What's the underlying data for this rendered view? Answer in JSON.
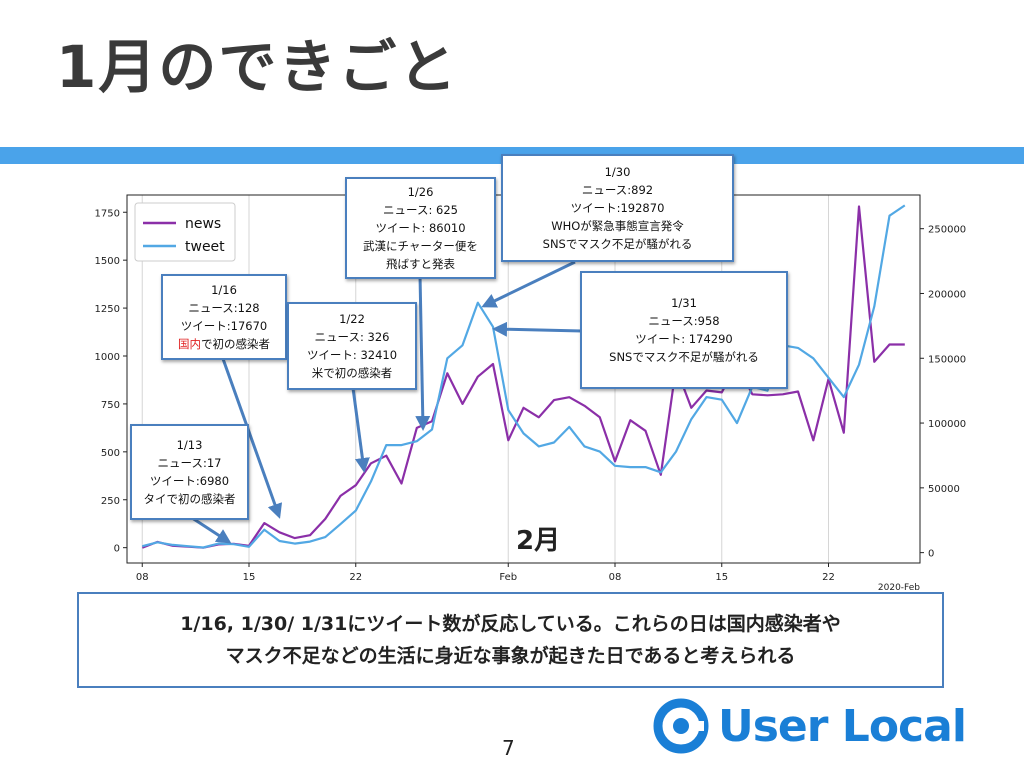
{
  "slide": {
    "title": "1月のできごと",
    "month_label": "2月",
    "summary_line1": "1/16, 1/30/ 1/31にツイート数が反応している。これらの日は国内感染者や",
    "summary_line2": "マスク不足などの生活に身近な事象が起きた日であると考えられる",
    "page_number": "7",
    "brand": "User Local",
    "colors": {
      "accent_bar": "#4aa3ea",
      "news": "#8b2fa8",
      "tweet": "#52a8e4",
      "callout_border": "#4a7fbe",
      "brand": "#1a7fd6"
    }
  },
  "callouts": [
    {
      "id": "jan13",
      "lines": [
        "1/13",
        "ニュース:17",
        "ツイート:6980",
        "タイで初の感染者"
      ]
    },
    {
      "id": "jan16",
      "lines": [
        "1/16",
        "ニュース:128",
        "ツイート:17670"
      ],
      "last_prefix": "国内",
      "last_suffix": "で初の感染者"
    },
    {
      "id": "jan22",
      "lines": [
        "1/22",
        "ニュース: 326",
        "ツイート: 32410",
        "米で初の感染者"
      ]
    },
    {
      "id": "jan26",
      "lines": [
        "1/26",
        "ニュース: 625",
        "ツイート: 86010",
        "武漢にチャーター便を",
        "飛ばすと発表"
      ]
    },
    {
      "id": "jan30",
      "lines": [
        "1/30",
        "ニュース:892",
        "ツイート:192870",
        "WHOが緊急事態宣言発令",
        "SNSでマスク不足が騒がれる"
      ]
    },
    {
      "id": "jan31",
      "lines": [
        "1/31",
        "ニュース:958",
        "ツイート: 174290",
        "SNSでマスク不足が騒がれる"
      ]
    }
  ],
  "chart_data": {
    "type": "line",
    "x_tick_labels": [
      "08",
      "15",
      "22",
      "Feb",
      "08",
      "15",
      "22"
    ],
    "x_offset_label": "2020-Feb",
    "x_range": [
      "2020-01-07",
      "2020-02-28"
    ],
    "y_left_ticks": [
      "0",
      "250",
      "500",
      "750",
      "1000",
      "1250",
      "1500",
      "1750"
    ],
    "y_left_range": [
      -80,
      1840
    ],
    "y_right_ticks": [
      "0",
      "50000",
      "100000",
      "150000",
      "200000",
      "250000"
    ],
    "y_right_range": [
      -8000,
      276000
    ],
    "grid": "vertical",
    "legend_position": "upper-left",
    "series": [
      {
        "name": "news",
        "axis": "left",
        "x": [
          "2020-01-08",
          "2020-01-09",
          "2020-01-10",
          "2020-01-11",
          "2020-01-12",
          "2020-01-13",
          "2020-01-14",
          "2020-01-15",
          "2020-01-16",
          "2020-01-17",
          "2020-01-18",
          "2020-01-19",
          "2020-01-20",
          "2020-01-21",
          "2020-01-22",
          "2020-01-23",
          "2020-01-24",
          "2020-01-25",
          "2020-01-26",
          "2020-01-27",
          "2020-01-28",
          "2020-01-29",
          "2020-01-30",
          "2020-01-31",
          "2020-02-01",
          "2020-02-02",
          "2020-02-03",
          "2020-02-04",
          "2020-02-05",
          "2020-02-06",
          "2020-02-07",
          "2020-02-08",
          "2020-02-09",
          "2020-02-10",
          "2020-02-11",
          "2020-02-12",
          "2020-02-13",
          "2020-02-14",
          "2020-02-15",
          "2020-02-16",
          "2020-02-17",
          "2020-02-18",
          "2020-02-19",
          "2020-02-20",
          "2020-02-21",
          "2020-02-22",
          "2020-02-23",
          "2020-02-24",
          "2020-02-25",
          "2020-02-26",
          "2020-02-27"
        ],
        "values": [
          0,
          30,
          10,
          5,
          0,
          17,
          20,
          10,
          128,
          80,
          50,
          65,
          150,
          270,
          326,
          440,
          480,
          335,
          625,
          660,
          910,
          750,
          892,
          958,
          560,
          730,
          680,
          770,
          785,
          740,
          680,
          450,
          665,
          610,
          380,
          940,
          730,
          820,
          810,
          960,
          800,
          795,
          800,
          815,
          560,
          880,
          600,
          1780,
          970,
          1060,
          1060
        ]
      },
      {
        "name": "tweet",
        "axis": "right",
        "x": [
          "2020-01-08",
          "2020-01-09",
          "2020-01-10",
          "2020-01-11",
          "2020-01-12",
          "2020-01-13",
          "2020-01-14",
          "2020-01-15",
          "2020-01-16",
          "2020-01-17",
          "2020-01-18",
          "2020-01-19",
          "2020-01-20",
          "2020-01-21",
          "2020-01-22",
          "2020-01-23",
          "2020-01-24",
          "2020-01-25",
          "2020-01-26",
          "2020-01-27",
          "2020-01-28",
          "2020-01-29",
          "2020-01-30",
          "2020-01-31",
          "2020-02-01",
          "2020-02-02",
          "2020-02-03",
          "2020-02-04",
          "2020-02-05",
          "2020-02-06",
          "2020-02-07",
          "2020-02-08",
          "2020-02-09",
          "2020-02-10",
          "2020-02-11",
          "2020-02-12",
          "2020-02-13",
          "2020-02-14",
          "2020-02-15",
          "2020-02-16",
          "2020-02-17",
          "2020-02-18",
          "2020-02-19",
          "2020-02-20",
          "2020-02-21",
          "2020-02-22",
          "2020-02-23",
          "2020-02-24",
          "2020-02-25",
          "2020-02-26",
          "2020-02-27"
        ],
        "values": [
          5000,
          8000,
          6000,
          5000,
          4000,
          6980,
          6500,
          4500,
          17670,
          9000,
          7000,
          8500,
          12000,
          22000,
          32410,
          55000,
          83000,
          83000,
          86010,
          95000,
          150000,
          160000,
          192870,
          174290,
          110000,
          92000,
          82000,
          85000,
          97000,
          82000,
          78000,
          67000,
          66000,
          66000,
          62000,
          78000,
          103000,
          120000,
          118000,
          100000,
          128000,
          125000,
          160000,
          158000,
          150000,
          135000,
          120000,
          145000,
          190000,
          260000,
          268000
        ]
      }
    ]
  }
}
